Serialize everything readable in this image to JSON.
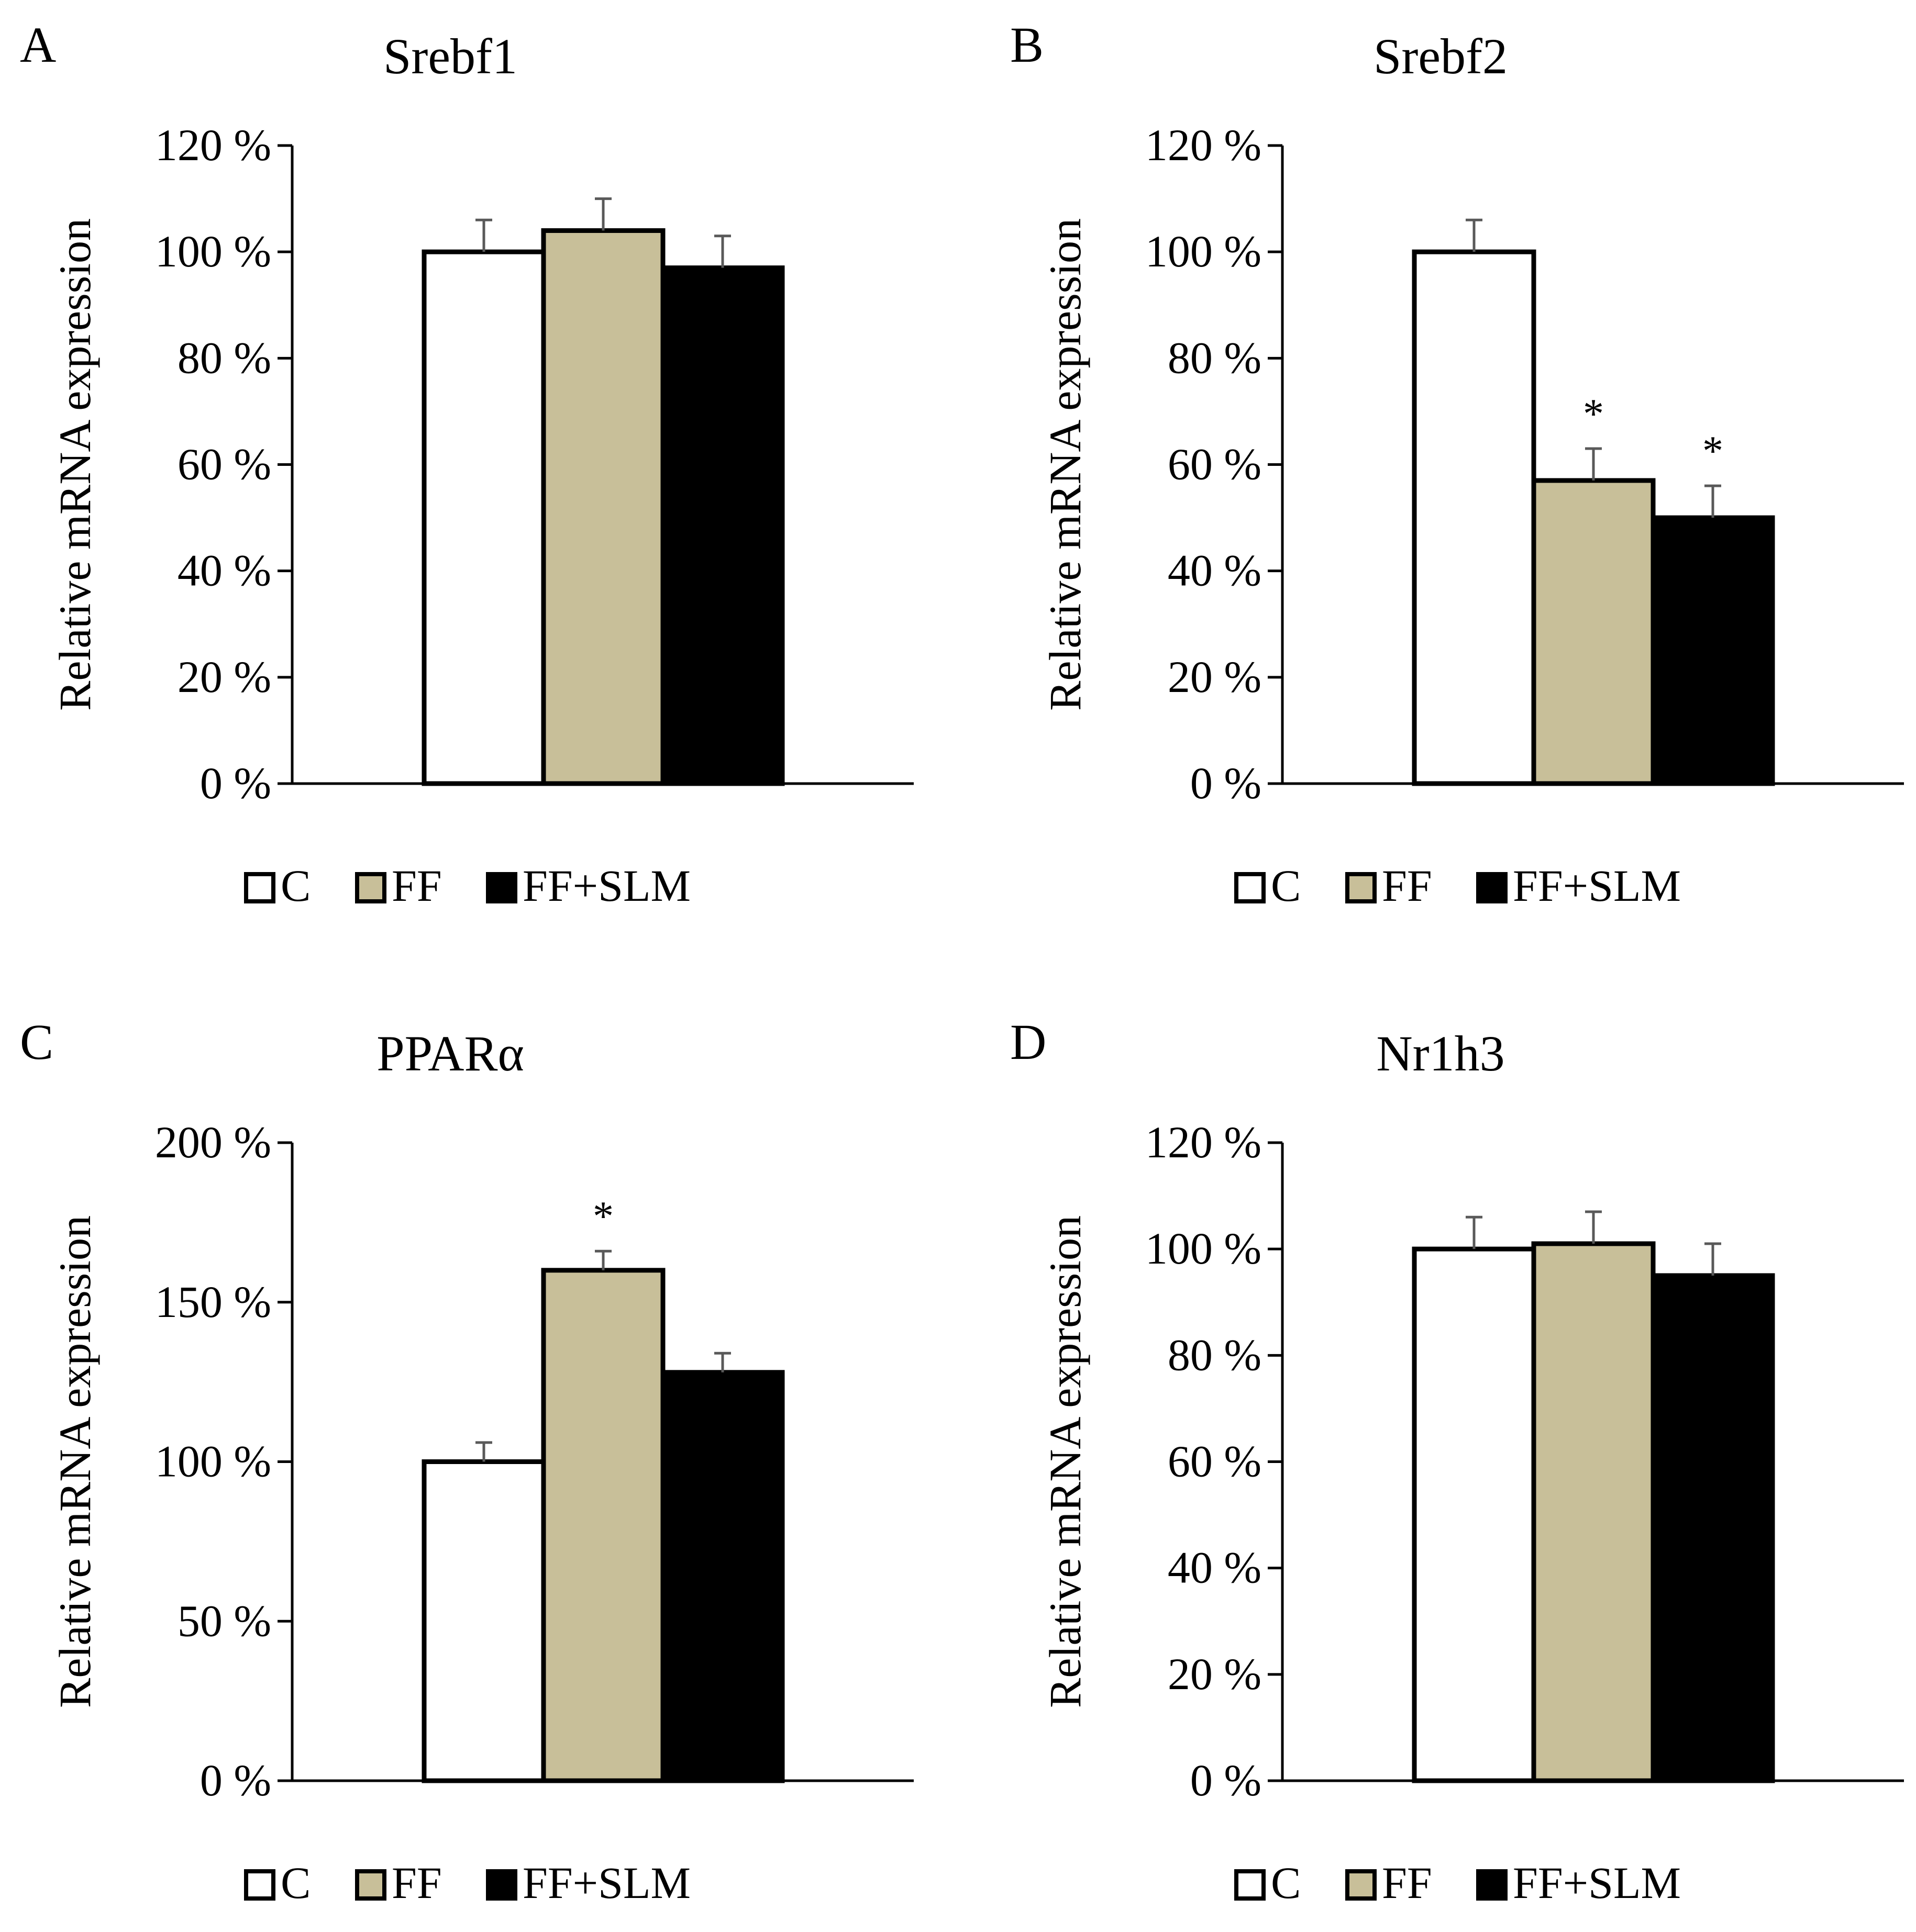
{
  "legend": {
    "items": [
      {
        "label": "C",
        "fill": "#ffffff"
      },
      {
        "label": "FF",
        "fill": "#c8bf99"
      },
      {
        "label": "FF+SLM",
        "fill": "#000000"
      }
    ]
  },
  "colors": {
    "C": "#ffffff",
    "FF": "#c8bf99",
    "FF+SLM": "#000000",
    "error_bar": "#595959"
  },
  "chart_data": [
    {
      "panel": "A",
      "type": "bar",
      "title": "Srebf1",
      "ylabel": "Relative mRNA expression",
      "categories": [
        "C",
        "FF",
        "FF+SLM"
      ],
      "values": [
        100,
        104,
        97
      ],
      "errors": [
        6,
        6,
        6
      ],
      "significance": [
        "",
        "",
        ""
      ],
      "ylim": [
        0,
        120
      ],
      "yticks": [
        0,
        20,
        40,
        60,
        80,
        100,
        120
      ],
      "tick_labels": [
        "0 %",
        "20 %",
        "40 %",
        "60 %",
        "80 %",
        "100 %",
        "120 %"
      ],
      "grid": false,
      "legend_position": "bottom"
    },
    {
      "panel": "B",
      "type": "bar",
      "title": "Srebf2",
      "ylabel": "Relative mRNA expression",
      "categories": [
        "C",
        "FF",
        "FF+SLM"
      ],
      "values": [
        100,
        57,
        50
      ],
      "errors": [
        6,
        6,
        6
      ],
      "significance": [
        "",
        "*",
        "*"
      ],
      "ylim": [
        0,
        120
      ],
      "yticks": [
        0,
        20,
        40,
        60,
        80,
        100,
        120
      ],
      "tick_labels": [
        "0 %",
        "20 %",
        "40 %",
        "60 %",
        "80 %",
        "100 %",
        "120 %"
      ],
      "grid": false,
      "legend_position": "bottom"
    },
    {
      "panel": "C",
      "type": "bar",
      "title": "PPARα",
      "ylabel": "Relative mRNA expression",
      "categories": [
        "C",
        "FF",
        "FF+SLM"
      ],
      "values": [
        100,
        160,
        128
      ],
      "errors": [
        6,
        6,
        6
      ],
      "significance": [
        "",
        "*",
        ""
      ],
      "ylim": [
        0,
        200
      ],
      "yticks": [
        0,
        50,
        100,
        150,
        200
      ],
      "tick_labels": [
        "0 %",
        "50 %",
        "100 %",
        "150 %",
        "200 %"
      ],
      "grid": false,
      "legend_position": "bottom"
    },
    {
      "panel": "D",
      "type": "bar",
      "title": "Nr1h3",
      "ylabel": "Relative mRNA expression",
      "categories": [
        "C",
        "FF",
        "FF+SLM"
      ],
      "values": [
        100,
        101,
        95
      ],
      "errors": [
        6,
        6,
        6
      ],
      "significance": [
        "",
        "",
        ""
      ],
      "ylim": [
        0,
        120
      ],
      "yticks": [
        0,
        20,
        40,
        60,
        80,
        100,
        120
      ],
      "tick_labels": [
        "0 %",
        "20 %",
        "40 %",
        "60 %",
        "80 %",
        "100 %",
        "120 %"
      ],
      "grid": false,
      "legend_position": "bottom"
    }
  ]
}
